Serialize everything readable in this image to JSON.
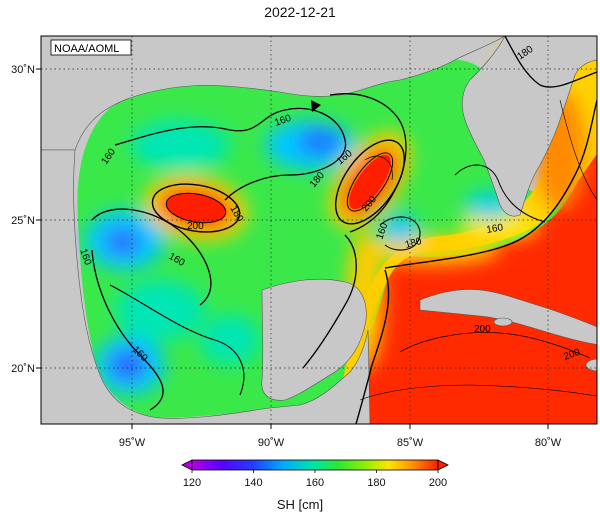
{
  "title": "2022-12-21",
  "credit": "NOAA/AOML",
  "lat_ticks": [
    "30˚N",
    "25˚N",
    "20˚N"
  ],
  "lon_ticks": [
    "95˚W",
    "90˚W",
    "85˚W",
    "80˚W"
  ],
  "contour_labels": [
    "160",
    "160",
    "160",
    "160",
    "180",
    "200",
    "180",
    "200",
    "160",
    "180",
    "160",
    "200",
    "200"
  ],
  "colorbar": {
    "label": "SH [cm]",
    "ticks": [
      "120",
      "140",
      "160",
      "180",
      "200"
    ],
    "colors": [
      "#b400e6",
      "#3a2bff",
      "#00b4ff",
      "#00e68c",
      "#41e600",
      "#a8ee00",
      "#ffee00",
      "#ffa800",
      "#ff5000",
      "#ff1e00"
    ]
  },
  "land_color": "#c8c8c8"
}
